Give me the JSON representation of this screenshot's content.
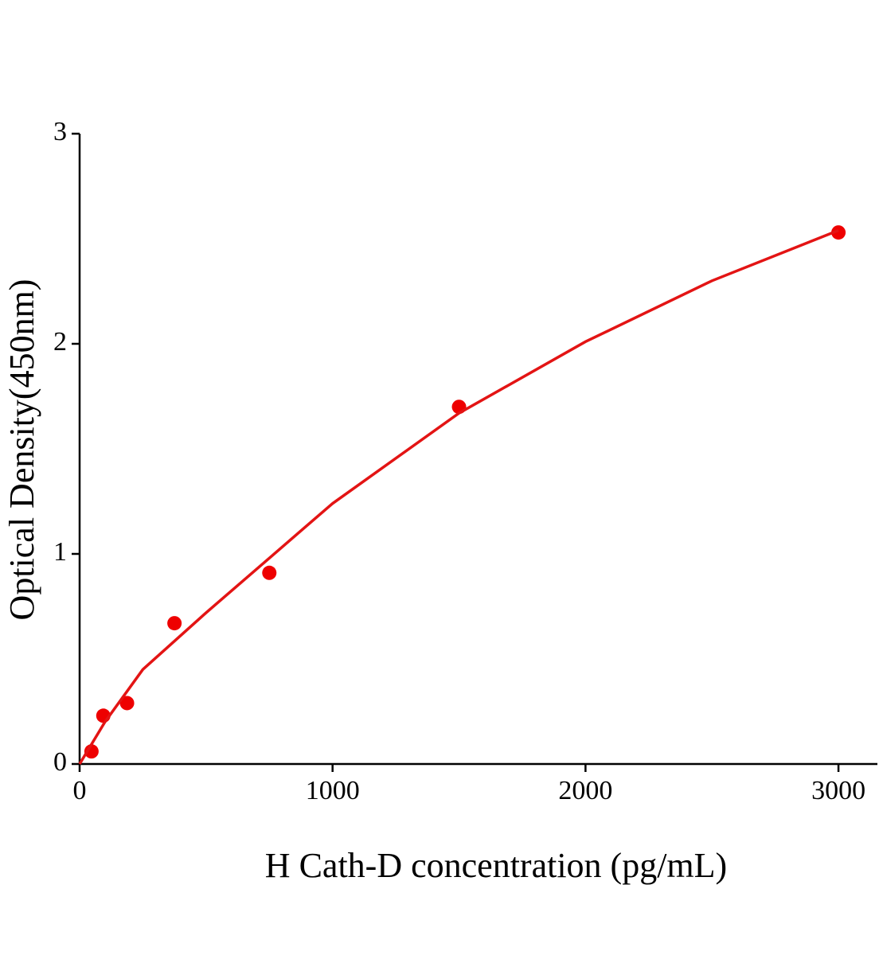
{
  "chart_data": {
    "type": "scatter",
    "x_label": "H Cath-D concentration (pg/mL)",
    "y_label": "Optical Density(450nm)",
    "series": [
      {
        "mode": "markers",
        "color": "#ee0000",
        "x": [
          46.875,
          93.75,
          187.5,
          375,
          750,
          1500,
          3000
        ],
        "values": [
          0.06,
          0.23,
          0.29,
          0.67,
          0.91,
          1.7,
          2.53
        ]
      },
      {
        "mode": "line",
        "color": "#e31414",
        "x": [
          0,
          100,
          250,
          500,
          750,
          1000,
          1500,
          2000,
          2500,
          3000
        ],
        "values": [
          0,
          0.2,
          0.45,
          0.72,
          0.98,
          1.24,
          1.67,
          2.01,
          2.3,
          2.54
        ]
      }
    ],
    "xlim": [
      0,
      3154
    ],
    "xticks": [
      0,
      1000,
      2000,
      3000
    ],
    "ylim": [
      0,
      3
    ],
    "yticks": [
      0,
      1,
      2,
      3
    ]
  }
}
